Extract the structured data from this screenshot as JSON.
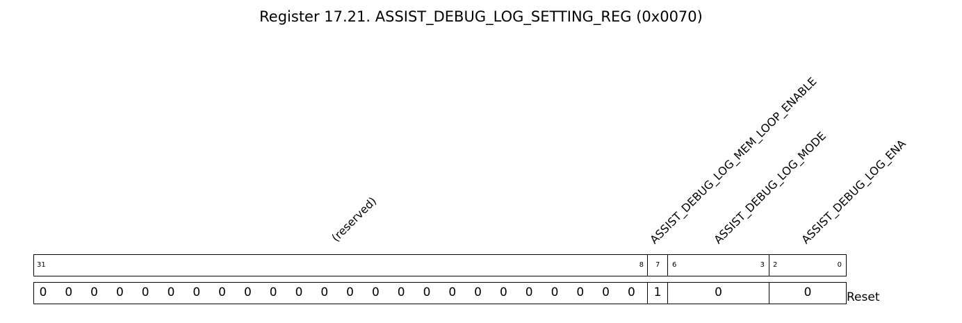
{
  "title": "Register 17.21. ASSIST_DEBUG_LOG_SETTING_REG (0x0070)",
  "fields": [
    {
      "name": "(reserved)",
      "bits_label_left": "31",
      "bits_label_right": "8",
      "reset": [
        "0",
        "0",
        "0",
        "0",
        "0",
        "0",
        "0",
        "0",
        "0",
        "0",
        "0",
        "0",
        "0",
        "0",
        "0",
        "0",
        "0",
        "0",
        "0",
        "0",
        "0",
        "0",
        "0",
        "0"
      ]
    },
    {
      "name": "ASSIST_DEBUG_LOG_MEM_LOOP_ENABLE",
      "bits_label_left": "7",
      "reset": "1"
    },
    {
      "name": "ASSIST_DEBUG_LOG_MODE",
      "bits_label_left": "6",
      "bits_label_right": "3",
      "reset": "0"
    },
    {
      "name": "ASSIST_DEBUG_LOG_ENA",
      "bits_label_left": "2",
      "bits_label_right": "0",
      "reset": "0"
    }
  ],
  "reset_label": "Reset"
}
